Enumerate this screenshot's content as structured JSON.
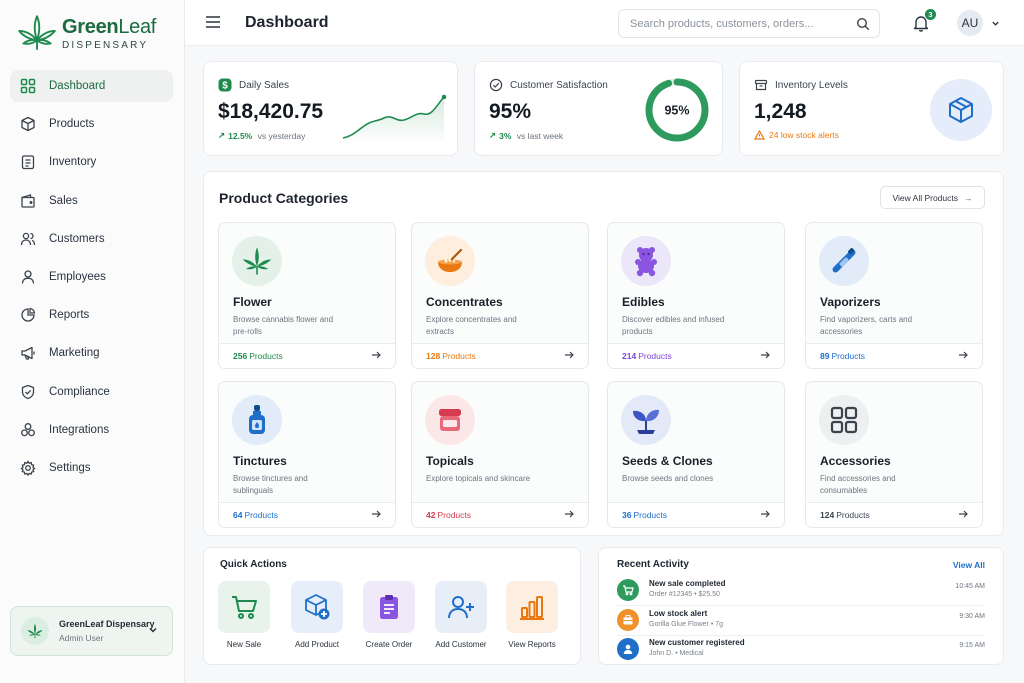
{
  "brand": {
    "name_bold": "Green",
    "name_light": "Leaf",
    "subtitle": "DISPENSARY"
  },
  "nav": [
    {
      "label": "Dashboard",
      "icon": "dashboard-grid-icon",
      "active": true
    },
    {
      "label": "Products",
      "icon": "cube-icon"
    },
    {
      "label": "Inventory",
      "icon": "clipboard-icon"
    },
    {
      "label": "Sales",
      "icon": "wallet-icon"
    },
    {
      "label": "Customers",
      "icon": "users-icon"
    },
    {
      "label": "Employees",
      "icon": "user-icon"
    },
    {
      "label": "Reports",
      "icon": "pie-chart-icon"
    },
    {
      "label": "Marketing",
      "icon": "megaphone-icon"
    },
    {
      "label": "Compliance",
      "icon": "shield-check-icon"
    },
    {
      "label": "Integrations",
      "icon": "integrations-icon"
    },
    {
      "label": "Settings",
      "icon": "gear-icon"
    }
  ],
  "account": {
    "name": "GreenLeaf Dispensary",
    "role": "Admin User"
  },
  "header": {
    "title": "Dashboard",
    "search_placeholder": "Search products, customers, orders...",
    "notifications": "3",
    "avatar_initials": "AU"
  },
  "stats": {
    "daily_sales": {
      "label": "Daily Sales",
      "value": "$18,420.75",
      "change": "12.5%",
      "change_text": "vs yesterday"
    },
    "satisfaction": {
      "label": "Customer Satisfaction",
      "value": "95%",
      "change": "3%",
      "change_text": "vs last week",
      "ring_text": "95%",
      "ring_fraction": 0.95
    },
    "inventory": {
      "label": "Inventory Levels",
      "value": "1,248",
      "alert": "24 low stock alerts"
    }
  },
  "categories_section": {
    "title": "Product Categories",
    "view_all": "View All Products"
  },
  "categories": [
    {
      "name": "Flower",
      "desc": "Browse cannabis flower and pre-rolls",
      "count": "256",
      "count_label": "Products",
      "color": "#1e8a4d",
      "bg": "#e3f1e8",
      "icon": "cannabis-leaf-icon"
    },
    {
      "name": "Concentrates",
      "desc": "Explore concentrates and extracts",
      "count": "128",
      "count_label": "Products",
      "color": "#e8780f",
      "bg": "#fdeedd",
      "icon": "dab-bowl-icon"
    },
    {
      "name": "Edibles",
      "desc": "Discover edibles and infused products",
      "count": "214",
      "count_label": "Products",
      "color": "#7a45d6",
      "bg": "#ece6f9",
      "icon": "gummy-bear-icon"
    },
    {
      "name": "Vaporizers",
      "desc": "Find vaporizers, carts and accessories",
      "count": "89",
      "count_label": "Products",
      "color": "#1f6fc9",
      "bg": "#e2ecf8",
      "icon": "vape-pen-icon"
    },
    {
      "name": "Tinctures",
      "desc": "Browse tinctures and sublinguals",
      "count": "64",
      "count_label": "Products",
      "color": "#1f6fc9",
      "bg": "#e2ecf8",
      "icon": "dropper-bottle-icon"
    },
    {
      "name": "Topicals",
      "desc": "Explore topicals and skincare",
      "count": "42",
      "count_label": "Products",
      "color": "#d63c4f",
      "bg": "#fbe6e8",
      "icon": "cream-jar-icon"
    },
    {
      "name": "Seeds & Clones",
      "desc": "Browse seeds and clones",
      "count": "36",
      "count_label": "Products",
      "color": "#1f6fc9",
      "bg": "#e4e9f8",
      "icon": "sprout-icon"
    },
    {
      "name": "Accessories",
      "desc": "Find accessories and consumables",
      "count": "124",
      "count_label": "Products",
      "color": "#3a434d",
      "bg": "#edeff1",
      "icon": "grid-icon"
    }
  ],
  "quick_actions": {
    "title": "Quick Actions",
    "items": [
      {
        "label": "New Sale",
        "icon": "cart-icon",
        "color": "#1e8a4d",
        "bg": "#e8f3ec"
      },
      {
        "label": "Add Product",
        "icon": "add-box-icon",
        "color": "#1f6fc9",
        "bg": "#e6eef9"
      },
      {
        "label": "Create Order",
        "icon": "clipboard-order-icon",
        "color": "#7a45d6",
        "bg": "#efe9fa"
      },
      {
        "label": "Add Customer",
        "icon": "add-user-icon",
        "color": "#1f6fc9",
        "bg": "#e8eef8"
      },
      {
        "label": "View Reports",
        "icon": "bar-chart-icon",
        "color": "#e8780f",
        "bg": "#fdeee2"
      }
    ]
  },
  "recent_activity": {
    "title": "Recent Activity",
    "view_all": "View All",
    "items": [
      {
        "title": "New sale completed",
        "sub": "Order #12345  •  $25.50",
        "time": "10:45 AM",
        "color": "#1e8a4d",
        "icon": "cart-icon"
      },
      {
        "title": "Low stock alert",
        "sub": "Gorilla Glue Flower  •  7g",
        "time": "9:30 AM",
        "color": "#f0922b",
        "icon": "box-icon"
      },
      {
        "title": "New customer registered",
        "sub": "John D.  •  Medical",
        "time": "9:15 AM",
        "color": "#1f6fc9",
        "icon": "user-icon"
      }
    ]
  }
}
